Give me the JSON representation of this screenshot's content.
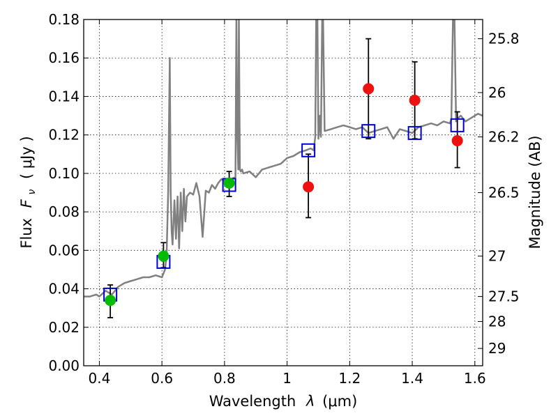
{
  "chart_data": {
    "type": "scatter",
    "xlabel": "Wavelength",
    "xlabel_symbol": "λ",
    "xlabel_unit": "(μm)",
    "ylabel": "Flux",
    "ylabel_symbol": "F",
    "ylabel_subscript": "ν",
    "ylabel_unit": "( μJy )",
    "y2label": "Magnitude (AB)",
    "xlim": [
      0.35,
      1.625
    ],
    "ylim": [
      0.0,
      0.18
    ],
    "grid": true,
    "x_ticks": [
      {
        "value": 0.4,
        "label": "0.4"
      },
      {
        "value": 0.6,
        "label": "0.6"
      },
      {
        "value": 0.8,
        "label": "0.8"
      },
      {
        "value": 1.0,
        "label": "1"
      },
      {
        "value": 1.2,
        "label": "1.2"
      },
      {
        "value": 1.4,
        "label": "1.4"
      },
      {
        "value": 1.6,
        "label": "1.6"
      }
    ],
    "y_ticks": [
      {
        "value": 0.0,
        "label": "0.00"
      },
      {
        "value": 0.02,
        "label": "0.02"
      },
      {
        "value": 0.04,
        "label": "0.04"
      },
      {
        "value": 0.06,
        "label": "0.06"
      },
      {
        "value": 0.08,
        "label": "0.08"
      },
      {
        "value": 0.1,
        "label": "0.10"
      },
      {
        "value": 0.12,
        "label": "0.12"
      },
      {
        "value": 0.14,
        "label": "0.14"
      },
      {
        "value": 0.16,
        "label": "0.16"
      },
      {
        "value": 0.18,
        "label": "0.18"
      }
    ],
    "y2_ticks": [
      {
        "flux": 0.17,
        "label": "25.8"
      },
      {
        "flux": 0.142,
        "label": "26"
      },
      {
        "flux": 0.119,
        "label": "26.2"
      },
      {
        "flux": 0.09,
        "label": "26.5"
      },
      {
        "flux": 0.057,
        "label": "27"
      },
      {
        "flux": 0.036,
        "label": "27.5"
      },
      {
        "flux": 0.023,
        "label": "28"
      },
      {
        "flux": 0.009,
        "label": "29"
      }
    ],
    "series": [
      {
        "name": "model spectrum",
        "kind": "line",
        "color": "#808080",
        "x": [
          0.35,
          0.37,
          0.39,
          0.4,
          0.42,
          0.44,
          0.45,
          0.46,
          0.48,
          0.5,
          0.52,
          0.54,
          0.56,
          0.58,
          0.6,
          0.61,
          0.615,
          0.62,
          0.625,
          0.628,
          0.631,
          0.634,
          0.64,
          0.645,
          0.65,
          0.655,
          0.66,
          0.665,
          0.67,
          0.675,
          0.68,
          0.69,
          0.7,
          0.71,
          0.72,
          0.73,
          0.74,
          0.75,
          0.76,
          0.77,
          0.78,
          0.79,
          0.8,
          0.82,
          0.835,
          0.838,
          0.841,
          0.844,
          0.846,
          0.849,
          0.852,
          0.856,
          0.86,
          0.88,
          0.9,
          0.92,
          0.94,
          0.96,
          0.98,
          1.0,
          1.02,
          1.04,
          1.06,
          1.075,
          1.085,
          1.09,
          1.093,
          1.097,
          1.1,
          1.105,
          1.108,
          1.112,
          1.115,
          1.12,
          1.14,
          1.16,
          1.18,
          1.2,
          1.22,
          1.24,
          1.26,
          1.28,
          1.3,
          1.32,
          1.34,
          1.36,
          1.38,
          1.4,
          1.42,
          1.44,
          1.46,
          1.48,
          1.5,
          1.52,
          1.525,
          1.53,
          1.535,
          1.54,
          1.548,
          1.555,
          1.57,
          1.59,
          1.61,
          1.625
        ],
        "y": [
          0.036,
          0.036,
          0.037,
          0.036,
          0.039,
          0.037,
          0.039,
          0.041,
          0.043,
          0.044,
          0.045,
          0.046,
          0.046,
          0.047,
          0.046,
          0.05,
          0.058,
          0.09,
          0.16,
          0.09,
          0.07,
          0.063,
          0.086,
          0.066,
          0.088,
          0.061,
          0.09,
          0.07,
          0.092,
          0.075,
          0.088,
          0.09,
          0.089,
          0.095,
          0.088,
          0.067,
          0.091,
          0.09,
          0.094,
          0.092,
          0.095,
          0.097,
          0.096,
          0.097,
          0.098,
          0.18,
          0.12,
          0.102,
          0.18,
          0.102,
          0.101,
          0.102,
          0.1,
          0.101,
          0.098,
          0.102,
          0.103,
          0.104,
          0.105,
          0.108,
          0.109,
          0.111,
          0.112,
          0.113,
          0.112,
          0.119,
          0.18,
          0.18,
          0.118,
          0.13,
          0.119,
          0.18,
          0.18,
          0.122,
          0.123,
          0.124,
          0.125,
          0.124,
          0.123,
          0.124,
          0.121,
          0.122,
          0.123,
          0.124,
          0.118,
          0.123,
          0.122,
          0.121,
          0.124,
          0.125,
          0.126,
          0.125,
          0.127,
          0.126,
          0.128,
          0.18,
          0.18,
          0.127,
          0.129,
          0.13,
          0.127,
          0.129,
          0.131,
          0.13
        ]
      },
      {
        "name": "green observations",
        "kind": "points",
        "color": "#00bb00",
        "x": [
          0.435,
          0.605,
          0.815
        ],
        "y": [
          0.034,
          0.057,
          0.095
        ],
        "yerr_low": [
          0.025,
          0.051,
          0.088
        ],
        "yerr_high": [
          0.042,
          0.064,
          0.101
        ]
      },
      {
        "name": "red observations",
        "kind": "points",
        "color": "#ee1111",
        "x": [
          1.068,
          1.26,
          1.408,
          1.544
        ],
        "y": [
          0.093,
          0.144,
          0.138,
          0.117
        ],
        "yerr_low": [
          0.077,
          0.118,
          0.118,
          0.103
        ],
        "yerr_high": [
          0.11,
          0.17,
          0.158,
          0.132
        ]
      },
      {
        "name": "model photometry",
        "kind": "squares",
        "color": "#0000cc",
        "x": [
          0.435,
          0.605,
          0.815,
          1.068,
          1.26,
          1.408,
          1.544
        ],
        "y": [
          0.037,
          0.054,
          0.094,
          0.112,
          0.122,
          0.121,
          0.125
        ]
      }
    ]
  }
}
